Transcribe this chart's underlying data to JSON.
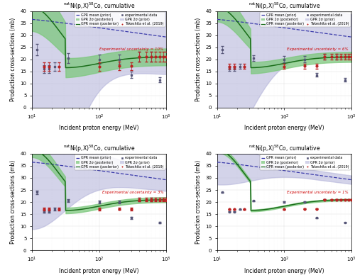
{
  "title": "$^{\\mathrm{nat}}$Ni(p,X)$^{58}$Co, cumulative",
  "xlabel": "Incident proton energy (MeV)",
  "ylabel": "Production cross-sections (mb)",
  "ylim": [
    0,
    40
  ],
  "xlim_log": [
    1,
    3
  ],
  "uncertainties": [
    10,
    6,
    3,
    1
  ],
  "uncertainty_color": "#cc0000",
  "prior_mean_color": "#3a3aaa",
  "posterior_mean_color": "#1a6e1a",
  "prior_band_color": "#b0b0d8",
  "posterior_band_color": "#7dc87d",
  "exp_data_color": "#555577",
  "takeshita_color": "#bb2222",
  "yticks": [
    0,
    5,
    10,
    15,
    20,
    25,
    30,
    35,
    40
  ],
  "exp_x": [
    12,
    15,
    18,
    22,
    35,
    100,
    200,
    300,
    400,
    600,
    800
  ],
  "exp_y": [
    24.0,
    16.0,
    16.0,
    17.0,
    20.5,
    20.0,
    20.0,
    13.5,
    21.0,
    21.0,
    11.5
  ],
  "tak_x": [
    15,
    18,
    25,
    100,
    200,
    300,
    400,
    500,
    600,
    700,
    800,
    900,
    1000
  ],
  "tak_y": [
    17.0,
    17.0,
    17.0,
    17.0,
    17.2,
    17.1,
    21.0,
    21.0,
    21.0,
    21.0,
    21.0,
    21.0,
    21.0
  ]
}
